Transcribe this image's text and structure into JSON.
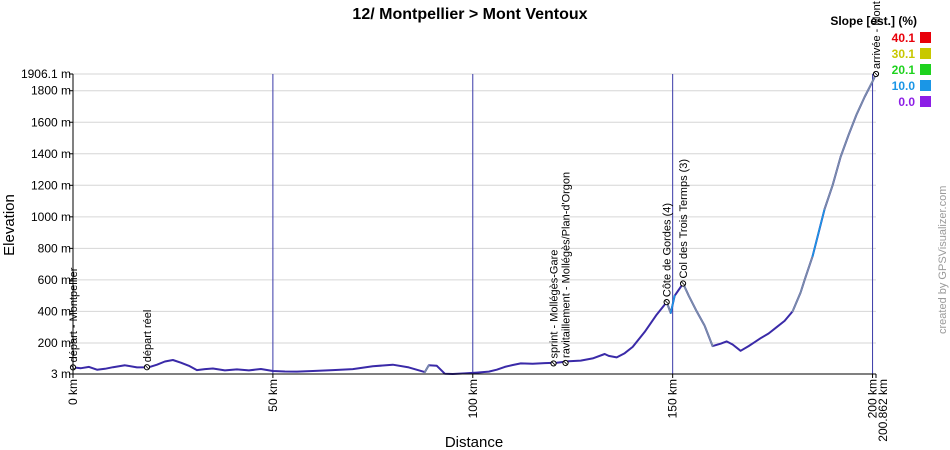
{
  "chart_data": {
    "type": "line",
    "title": "12/ Montpellier > Mont Ventoux",
    "xlabel": "Distance",
    "ylabel": "Elevation",
    "xlim": [
      0,
      200.862
    ],
    "ylim": [
      3,
      1906.1
    ],
    "x_ticks": [
      {
        "value": 0,
        "label": "0 km"
      },
      {
        "value": 50,
        "label": "50 km"
      },
      {
        "value": 100,
        "label": "100 km"
      },
      {
        "value": 150,
        "label": "150 km"
      },
      {
        "value": 200,
        "label": "200 km"
      },
      {
        "value": 200.862,
        "label": "200.862 km"
      }
    ],
    "y_ticks": [
      {
        "value": 3,
        "label": "3 m"
      },
      {
        "value": 200,
        "label": "200 m"
      },
      {
        "value": 400,
        "label": "400 m"
      },
      {
        "value": 600,
        "label": "600 m"
      },
      {
        "value": 800,
        "label": "800 m"
      },
      {
        "value": 1000,
        "label": "1000 m"
      },
      {
        "value": 1200,
        "label": "1200 m"
      },
      {
        "value": 1400,
        "label": "1400 m"
      },
      {
        "value": 1600,
        "label": "1600 m"
      },
      {
        "value": 1800,
        "label": "1800 m"
      },
      {
        "value": 1906.1,
        "label": "1906.1 m"
      }
    ],
    "grid": true,
    "series": [
      {
        "x": [
          0,
          2,
          4,
          6,
          8,
          10,
          13,
          16,
          19,
          21,
          23,
          25,
          27,
          29,
          31,
          33,
          35,
          38,
          41,
          44,
          47,
          50,
          53,
          56,
          60,
          65,
          70,
          75,
          80,
          84,
          88,
          89,
          91,
          93,
          95,
          98,
          101,
          104,
          106,
          108,
          110,
          112,
          115,
          118,
          121,
          124,
          127,
          130,
          133,
          134,
          136,
          138,
          140,
          143,
          146,
          148.5,
          149.5,
          150.5,
          152.6,
          154,
          156,
          158,
          160,
          162,
          163.5,
          165,
          167,
          169,
          170.5,
          172,
          174,
          176,
          178,
          180,
          182,
          183,
          185,
          186.5,
          188,
          190,
          192,
          194,
          196,
          198,
          200,
          200.862
        ],
        "y": [
          45,
          40,
          48,
          30,
          36,
          46,
          58,
          45,
          46,
          62,
          82,
          92,
          75,
          55,
          28,
          34,
          38,
          26,
          32,
          26,
          35,
          22,
          19,
          18,
          22,
          28,
          34,
          52,
          62,
          45,
          15,
          58,
          55,
          5,
          3,
          7,
          12,
          18,
          30,
          48,
          60,
          70,
          68,
          72,
          75,
          84,
          88,
          102,
          130,
          118,
          108,
          135,
          175,
          270,
          380,
          459,
          390,
          500,
          577,
          500,
          400,
          310,
          180,
          195,
          210,
          190,
          150,
          180,
          205,
          230,
          260,
          300,
          340,
          400,
          520,
          600,
          750,
          900,
          1050,
          1200,
          1380,
          1520,
          1650,
          1760,
          1860,
          1906.1
        ]
      }
    ],
    "waypoints": [
      {
        "x": 0,
        "y": 45,
        "label": "départ - Montpellier"
      },
      {
        "x": 18.5,
        "y": 46,
        "label": "départ réel"
      },
      {
        "x": 120.2,
        "y": 70,
        "label": "sprint - Mollégès-Gare"
      },
      {
        "x": 123.2,
        "y": 73,
        "label": "ravitaillement - Mollégès/Plan-d'Orgon"
      },
      {
        "x": 148.5,
        "y": 459,
        "label": "Côte de Gordes (4)"
      },
      {
        "x": 152.6,
        "y": 577,
        "label": "Col des Trois Termps (3)"
      },
      {
        "x": 200.862,
        "y": 1906.1,
        "label": "arrivée - Mont Ventoux"
      }
    ],
    "legend": {
      "title": "Slope [est.] (%)",
      "position": "top-right",
      "items": [
        {
          "label": "40.1",
          "color": "#e8000a"
        },
        {
          "label": "30.1",
          "color": "#c8c800"
        },
        {
          "label": "20.1",
          "color": "#1ed21e"
        },
        {
          "label": "10.0",
          "color": "#1a96e6"
        },
        {
          "label": "0.0",
          "color": "#8c1ee6"
        }
      ]
    },
    "colors": {
      "line": "#3a2aa8",
      "grid": "#d6d6d6",
      "v_grid": "#3a3aa8"
    }
  },
  "credit": "created by GPSVisualizer.com"
}
